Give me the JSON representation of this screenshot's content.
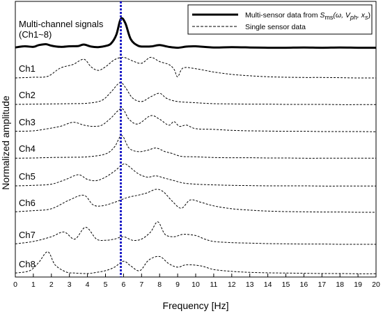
{
  "chart_data": {
    "type": "line",
    "xlabel": "Frequency [Hz]",
    "ylabel": "Normalized amplitude",
    "xlim": [
      0,
      20
    ],
    "xticks": [
      0,
      1,
      2,
      3,
      4,
      5,
      6,
      7,
      8,
      9,
      10,
      11,
      12,
      13,
      14,
      15,
      16,
      17,
      18,
      19,
      20
    ],
    "grid": false,
    "legend_position": "top-right",
    "vline": {
      "x": 5.85,
      "color": "#1f1fc8",
      "style": "dotted"
    },
    "annotation": {
      "line1": "Multi-channel signals",
      "line2": "(Ch1~8)"
    },
    "legend": [
      {
        "pre": "Multi-sensor data from ",
        "S": "S",
        "sub1": "ms",
        "args": "(ω, V",
        "sub2": "ph",
        "args2": ", x",
        "sub3": "s",
        "close": ")",
        "style": "solid"
      },
      {
        "label": "Single sensor data",
        "style": "dashed"
      }
    ],
    "multi_sensor": {
      "name": "Multi-sensor data",
      "x": [
        0,
        0.5,
        1,
        1.3,
        1.7,
        2,
        2.5,
        3,
        3.5,
        3.8,
        4.2,
        4.6,
        5,
        5.3,
        5.6,
        5.85,
        6.1,
        6.4,
        6.8,
        7.2,
        7.6,
        8,
        8.5,
        9,
        9.5,
        10,
        11,
        12,
        13,
        14,
        15,
        16,
        17,
        18,
        19,
        20
      ],
      "y": [
        0.02,
        0.06,
        0.04,
        0.1,
        0.13,
        0.08,
        0.04,
        0.06,
        0.07,
        0.12,
        0.05,
        0.03,
        0.07,
        0.15,
        0.45,
        1.0,
        0.85,
        0.3,
        0.08,
        0.05,
        0.06,
        0.1,
        0.04,
        0.01,
        0.05,
        0.06,
        0.02,
        0.03,
        0.02,
        0.01,
        0.01,
        0.02,
        0.01,
        0.02,
        0.01,
        0.01
      ]
    },
    "series": [
      {
        "name": "Ch1",
        "x": [
          0,
          1,
          1.8,
          2.5,
          3.2,
          3.8,
          4.2,
          4.6,
          5,
          5.5,
          6,
          6.5,
          7,
          7.5,
          8,
          8.5,
          8.8,
          9,
          9.3,
          10,
          11,
          12,
          13,
          14,
          15,
          16,
          17,
          18,
          19,
          20
        ],
        "y": [
          0.03,
          0.06,
          0.1,
          0.45,
          0.6,
          0.82,
          0.5,
          0.35,
          0.5,
          0.8,
          0.9,
          0.75,
          0.65,
          0.9,
          0.72,
          0.6,
          0.4,
          0.08,
          0.45,
          0.42,
          0.28,
          0.18,
          0.12,
          0.08,
          0.06,
          0.05,
          0.05,
          0.04,
          0.03,
          0.03
        ]
      },
      {
        "name": "Ch2",
        "x": [
          0,
          1,
          2,
          3,
          4,
          4.8,
          5.3,
          5.8,
          6.1,
          6.5,
          7,
          7.5,
          8,
          8.4,
          9,
          10,
          11,
          12,
          13,
          14,
          15,
          16,
          17,
          18,
          19,
          20
        ],
        "y": [
          0.03,
          0.04,
          0.05,
          0.06,
          0.08,
          0.2,
          0.55,
          0.95,
          0.75,
          0.3,
          0.15,
          0.35,
          0.5,
          0.28,
          0.15,
          0.1,
          0.06,
          0.05,
          0.04,
          0.04,
          0.03,
          0.03,
          0.03,
          0.02,
          0.02,
          0.02
        ]
      },
      {
        "name": "Ch3",
        "x": [
          0,
          1,
          1.8,
          2.5,
          3.2,
          3.8,
          4.3,
          4.8,
          5.3,
          5.9,
          6.3,
          6.8,
          7.5,
          8,
          8.5,
          8.8,
          9.1,
          9.5,
          10,
          11,
          12,
          13,
          14,
          15,
          16,
          17,
          18,
          19,
          20
        ],
        "y": [
          0.04,
          0.06,
          0.15,
          0.25,
          0.42,
          0.3,
          0.25,
          0.3,
          0.6,
          1.0,
          0.55,
          0.35,
          0.7,
          0.55,
          0.3,
          0.45,
          0.25,
          0.3,
          0.15,
          0.12,
          0.08,
          0.06,
          0.05,
          0.04,
          0.04,
          0.03,
          0.03,
          0.03,
          0.02
        ]
      },
      {
        "name": "Ch4",
        "x": [
          0,
          1,
          2,
          3,
          4,
          5,
          5.5,
          5.9,
          6.3,
          6.8,
          7.3,
          7.8,
          8.3,
          8.7,
          9.2,
          10,
          11,
          12,
          13,
          14,
          15,
          16,
          17,
          18,
          19,
          20
        ],
        "y": [
          0.02,
          0.03,
          0.05,
          0.06,
          0.08,
          0.2,
          0.5,
          0.98,
          0.45,
          0.3,
          0.35,
          0.45,
          0.3,
          0.22,
          0.1,
          0.08,
          0.05,
          0.04,
          0.04,
          0.03,
          0.03,
          0.02,
          0.02,
          0.02,
          0.02,
          0.02
        ]
      },
      {
        "name": "Ch5",
        "x": [
          0,
          1,
          2,
          2.8,
          3.5,
          4,
          4.5,
          5,
          5.5,
          6,
          6.3,
          6.8,
          7.3,
          7.8,
          8.3,
          8.8,
          9.3,
          10,
          11,
          12,
          13,
          14,
          15,
          16,
          17,
          18,
          19,
          20
        ],
        "y": [
          0.03,
          0.05,
          0.1,
          0.3,
          0.5,
          0.3,
          0.25,
          0.4,
          0.65,
          0.95,
          0.85,
          0.55,
          0.4,
          0.45,
          0.35,
          0.25,
          0.15,
          0.1,
          0.07,
          0.05,
          0.04,
          0.03,
          0.03,
          0.03,
          0.02,
          0.02,
          0.02,
          0.02
        ]
      },
      {
        "name": "Ch6",
        "x": [
          0,
          1,
          2,
          3,
          3.8,
          4.3,
          4.8,
          5.5,
          6.2,
          6.8,
          7.3,
          7.8,
          8.2,
          8.7,
          9.2,
          9.7,
          10.3,
          11,
          12,
          13,
          14,
          15,
          16,
          17,
          18,
          19,
          20
        ],
        "y": [
          0.05,
          0.1,
          0.18,
          0.55,
          0.75,
          0.35,
          0.3,
          0.45,
          0.65,
          0.75,
          0.85,
          1.0,
          0.9,
          0.5,
          0.2,
          0.55,
          0.45,
          0.3,
          0.18,
          0.12,
          0.08,
          0.06,
          0.05,
          0.04,
          0.04,
          0.03,
          0.03
        ]
      },
      {
        "name": "Ch7",
        "x": [
          0,
          1,
          2,
          2.7,
          3.3,
          3.9,
          4.5,
          5,
          5.5,
          6,
          6.5,
          7,
          7.5,
          7.9,
          8.3,
          8.8,
          9.3,
          10,
          10.5,
          11,
          12,
          13,
          14,
          15,
          16,
          17,
          18,
          19,
          20
        ],
        "y": [
          0.05,
          0.15,
          0.35,
          0.55,
          0.25,
          0.75,
          0.25,
          0.2,
          0.25,
          0.35,
          0.2,
          0.25,
          0.55,
          0.98,
          0.45,
          0.35,
          0.45,
          0.4,
          0.25,
          0.15,
          0.1,
          0.08,
          0.06,
          0.05,
          0.04,
          0.04,
          0.03,
          0.03,
          0.03
        ]
      },
      {
        "name": "Ch8",
        "x": [
          0,
          0.8,
          1.3,
          1.8,
          2.2,
          2.8,
          3.3,
          4,
          4.5,
          5,
          5.5,
          6,
          6.4,
          6.9,
          7.4,
          8,
          8.5,
          9,
          9.5,
          10.3,
          11,
          12,
          13,
          14,
          15,
          16,
          17,
          18,
          19,
          20
        ],
        "y": [
          0.05,
          0.15,
          0.5,
          0.95,
          0.4,
          0.1,
          0.05,
          0.03,
          0.08,
          0.15,
          0.3,
          0.55,
          0.35,
          0.15,
          0.6,
          0.75,
          0.45,
          0.3,
          0.4,
          0.35,
          0.2,
          0.12,
          0.08,
          0.06,
          0.05,
          0.04,
          0.03,
          0.03,
          0.02,
          0.02
        ]
      }
    ]
  }
}
